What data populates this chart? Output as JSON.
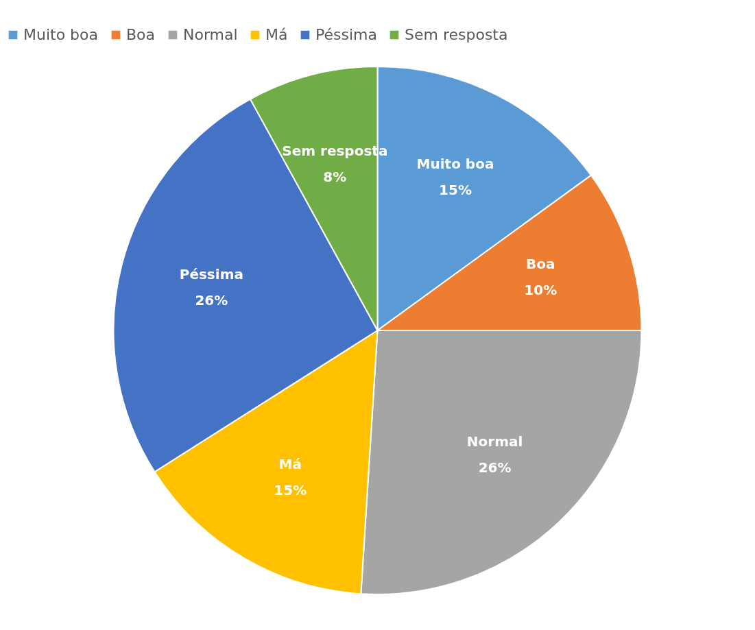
{
  "chart_data": {
    "type": "pie",
    "categories": [
      "Muito boa",
      "Boa",
      "Normal",
      "Má",
      "Péssima",
      "Sem resposta"
    ],
    "values": [
      15,
      10,
      26,
      15,
      26,
      8
    ],
    "colors": [
      "#5b9bd5",
      "#ed7d31",
      "#a5a5a5",
      "#ffc000",
      "#4472c4",
      "#70ad47"
    ],
    "value_labels": [
      "15%",
      "10%",
      "26%",
      "15%",
      "26%",
      "8%"
    ],
    "legend": "top"
  }
}
